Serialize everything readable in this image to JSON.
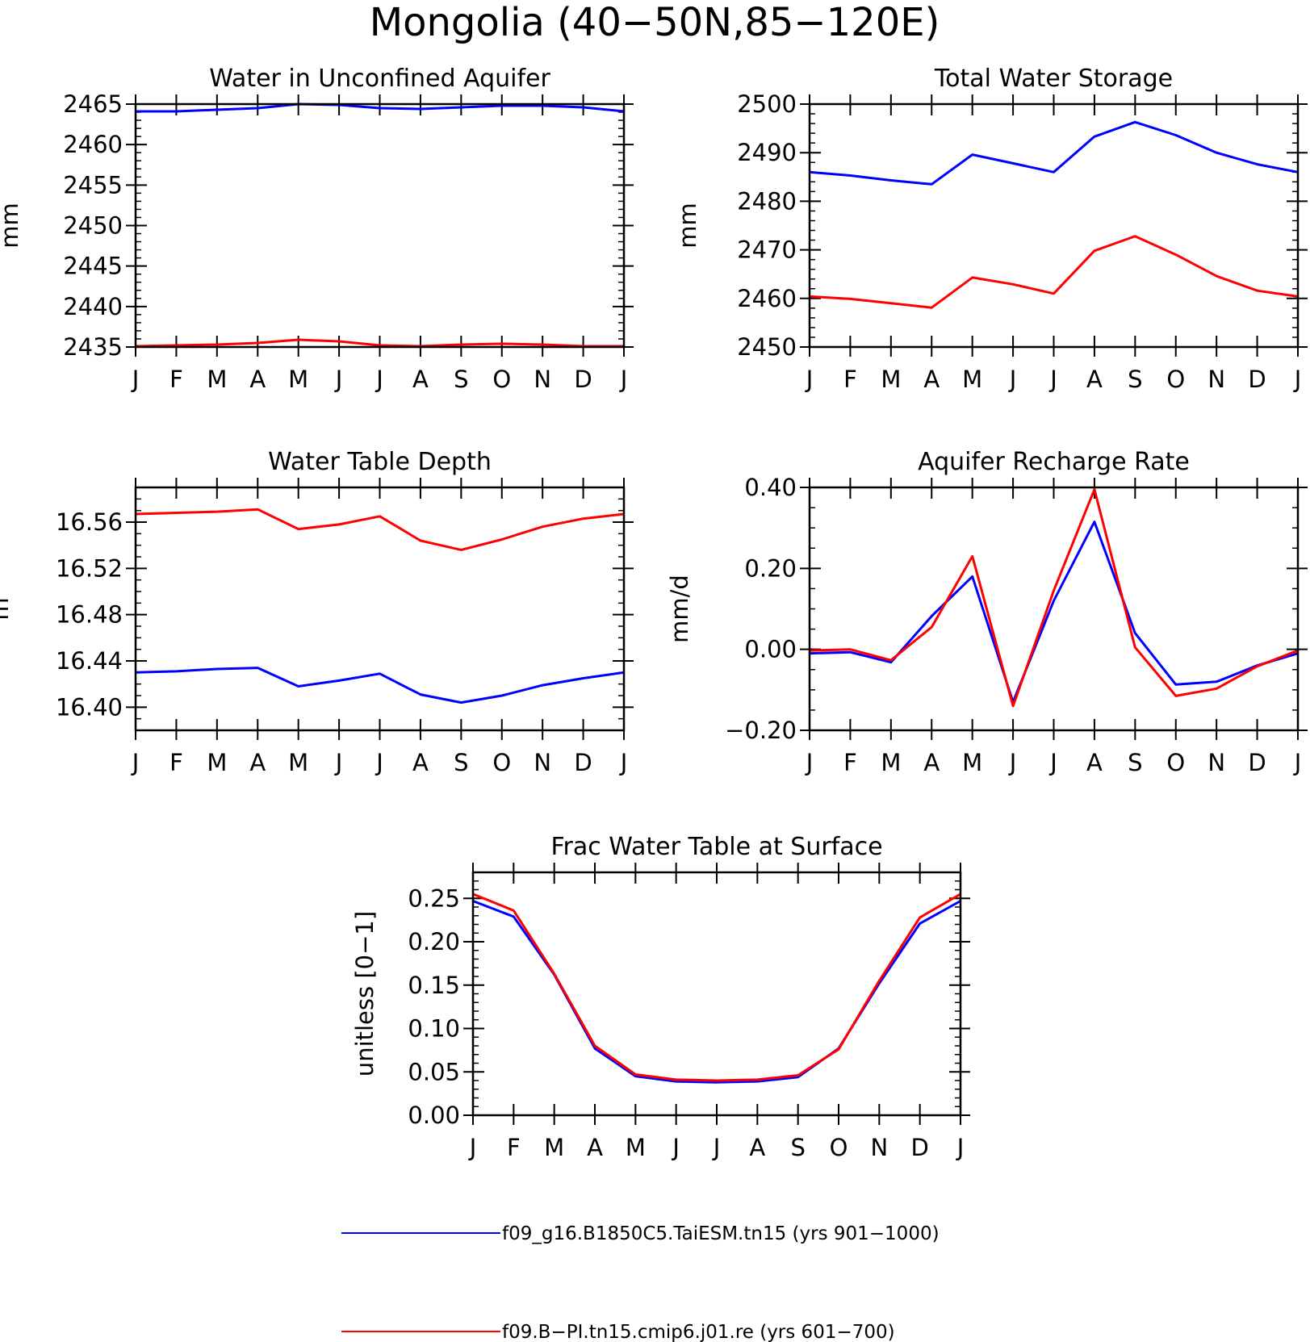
{
  "figure": {
    "title": "Mongolia (40−50N,85−120E)"
  },
  "legend": [
    {
      "label": "f09_g16.B1850C5.TaiESM.tn15 (yrs 901−1000)",
      "color": "#0000ff"
    },
    {
      "label": "f09.B−PI.tn15.cmip6.j01.re (yrs 601−700)",
      "color": "#ff0000"
    }
  ],
  "chart_data": [
    {
      "type": "line",
      "title": "Water in Unconfined Aquifer",
      "ylabel": "mm",
      "x": [
        "J",
        "F",
        "M",
        "A",
        "M",
        "J",
        "J",
        "A",
        "S",
        "O",
        "N",
        "D",
        "J"
      ],
      "ylim": [
        2435,
        2465
      ],
      "yticks": [
        "2435",
        "2440",
        "2445",
        "2450",
        "2455",
        "2460",
        "2465"
      ],
      "series": [
        {
          "color": "#0000ff",
          "values": [
            2464.1,
            2464.1,
            2464.3,
            2464.5,
            2465.0,
            2464.9,
            2464.5,
            2464.4,
            2464.6,
            2464.8,
            2464.8,
            2464.6,
            2464.1
          ]
        },
        {
          "color": "#ff0000",
          "values": [
            2435.1,
            2435.2,
            2435.3,
            2435.5,
            2435.9,
            2435.7,
            2435.2,
            2435.1,
            2435.3,
            2435.4,
            2435.3,
            2435.1,
            2435.1
          ]
        }
      ]
    },
    {
      "type": "line",
      "title": "Total Water Storage",
      "ylabel": "mm",
      "x": [
        "J",
        "F",
        "M",
        "A",
        "M",
        "J",
        "J",
        "A",
        "S",
        "O",
        "N",
        "D",
        "J"
      ],
      "ylim": [
        2450,
        2500
      ],
      "yticks": [
        "2450",
        "2460",
        "2470",
        "2480",
        "2490",
        "2500"
      ],
      "series": [
        {
          "color": "#0000ff",
          "values": [
            2486.0,
            2485.3,
            2484.3,
            2483.5,
            2489.6,
            2487.8,
            2486.0,
            2493.3,
            2496.3,
            2493.6,
            2490.0,
            2487.6,
            2486.0
          ]
        },
        {
          "color": "#ff0000",
          "values": [
            2460.4,
            2459.9,
            2459.0,
            2458.1,
            2464.3,
            2462.9,
            2461.0,
            2469.8,
            2472.8,
            2469.0,
            2464.6,
            2461.6,
            2460.4
          ]
        }
      ]
    },
    {
      "type": "line",
      "title": "Water Table Depth",
      "ylabel": "m",
      "x": [
        "J",
        "F",
        "M",
        "A",
        "M",
        "J",
        "J",
        "A",
        "S",
        "O",
        "N",
        "D",
        "J"
      ],
      "ylim": [
        16.38,
        16.59
      ],
      "yticks": [
        "16.40",
        "16.44",
        "16.48",
        "16.52",
        "16.56"
      ],
      "series": [
        {
          "color": "#0000ff",
          "values": [
            16.43,
            16.431,
            16.433,
            16.434,
            16.418,
            16.423,
            16.429,
            16.411,
            16.404,
            16.41,
            16.419,
            16.425,
            16.43
          ]
        },
        {
          "color": "#ff0000",
          "values": [
            16.567,
            16.568,
            16.569,
            16.571,
            16.554,
            16.558,
            16.565,
            16.544,
            16.536,
            16.545,
            16.556,
            16.563,
            16.567
          ]
        }
      ]
    },
    {
      "type": "line",
      "title": "Aquifer Recharge Rate",
      "ylabel": "mm/d",
      "x": [
        "J",
        "F",
        "M",
        "A",
        "M",
        "J",
        "J",
        "A",
        "S",
        "O",
        "N",
        "D",
        "J"
      ],
      "ylim": [
        -0.2,
        0.4
      ],
      "yticks": [
        "−0.20",
        "0.00",
        "0.20",
        "0.40"
      ],
      "series": [
        {
          "color": "#0000ff",
          "values": [
            -0.01,
            -0.007,
            -0.032,
            0.082,
            0.18,
            -0.13,
            0.12,
            0.315,
            0.04,
            -0.087,
            -0.08,
            -0.04,
            -0.01
          ]
        },
        {
          "color": "#ff0000",
          "values": [
            -0.003,
            0.0,
            -0.027,
            0.055,
            0.23,
            -0.14,
            0.145,
            0.395,
            0.005,
            -0.115,
            -0.097,
            -0.042,
            -0.003
          ]
        }
      ]
    },
    {
      "type": "line",
      "title": "Frac Water Table at Surface",
      "ylabel": "unitless [0−1]",
      "x": [
        "J",
        "F",
        "M",
        "A",
        "M",
        "J",
        "J",
        "A",
        "S",
        "O",
        "N",
        "D",
        "J"
      ],
      "ylim": [
        0.0,
        0.28
      ],
      "yticks": [
        "0.00",
        "0.05",
        "0.10",
        "0.15",
        "0.20",
        "0.25"
      ],
      "series": [
        {
          "color": "#0000ff",
          "values": [
            0.247,
            0.229,
            0.162,
            0.077,
            0.045,
            0.039,
            0.038,
            0.039,
            0.044,
            0.077,
            0.152,
            0.221,
            0.247
          ]
        },
        {
          "color": "#ff0000",
          "values": [
            0.255,
            0.236,
            0.163,
            0.08,
            0.047,
            0.041,
            0.04,
            0.041,
            0.046,
            0.076,
            0.155,
            0.228,
            0.255
          ]
        }
      ]
    }
  ]
}
